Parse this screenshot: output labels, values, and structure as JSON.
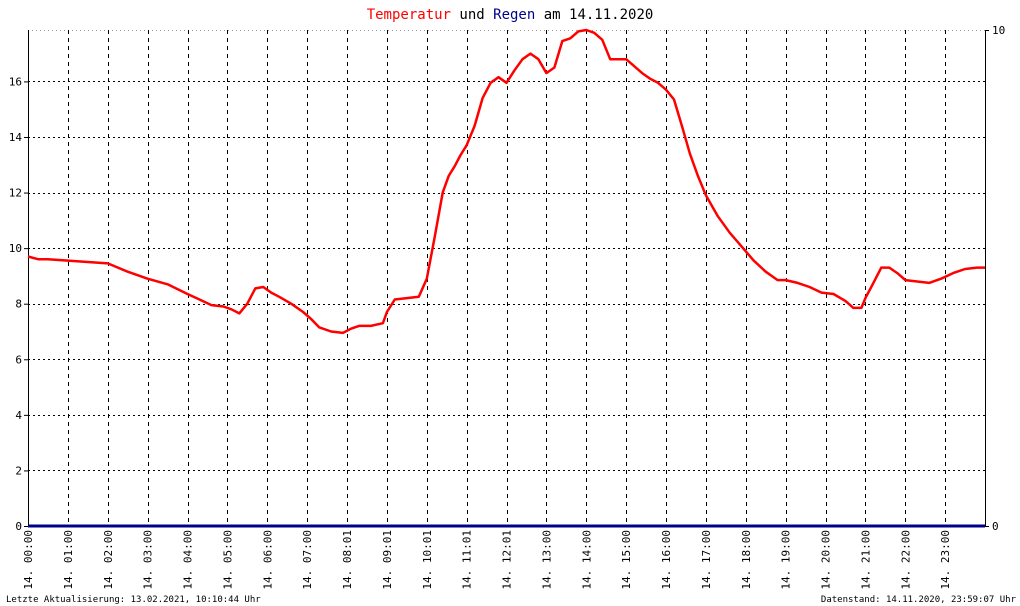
{
  "title": {
    "part1": "Temperatur",
    "part2": " und ",
    "part3": "Regen",
    "part4": " am 14.11.2020"
  },
  "colors": {
    "temperature": "#ff0000",
    "rain": "#00008b",
    "grid": "#000000",
    "background": "#ffffff"
  },
  "footer": {
    "left": "Letzte Aktualisierung: 13.02.2021, 10:10:44 Uhr",
    "right": "Datenstand: 14.11.2020, 23:59:07 Uhr"
  },
  "chart_data": {
    "type": "line",
    "title": "Temperatur und Regen am 14.11.2020",
    "grid": true,
    "x_tick_labels": [
      "14. 00:00",
      "14. 01:00",
      "14. 02:00",
      "14. 03:00",
      "14. 04:00",
      "14. 05:00",
      "14. 06:00",
      "14. 07:00",
      "14. 08:01",
      "14. 09:01",
      "14. 10:01",
      "14. 11:01",
      "14. 12:01",
      "14. 13:00",
      "14. 14:00",
      "14. 15:00",
      "14. 16:00",
      "14. 17:00",
      "14. 18:00",
      "14. 19:00",
      "14. 20:00",
      "14. 21:00",
      "14. 22:00",
      "14. 23:00"
    ],
    "y_left": {
      "ylim": [
        0,
        17.85
      ],
      "ticks": [
        0,
        2,
        4,
        6,
        8,
        10,
        12,
        14,
        16
      ]
    },
    "y_right": {
      "ylim": [
        0,
        10
      ],
      "ticks": [
        0,
        10
      ]
    },
    "series": [
      {
        "name": "Temperatur",
        "axis": "left",
        "x": [
          0,
          0.25,
          0.5,
          1,
          1.5,
          2,
          2.5,
          3,
          3.5,
          4,
          4.3,
          4.6,
          4.9,
          5.1,
          5.3,
          5.5,
          5.7,
          5.9,
          6.1,
          6.3,
          6.6,
          6.9,
          7.1,
          7.3,
          7.6,
          7.9,
          8.1,
          8.3,
          8.6,
          8.9,
          9.0,
          9.2,
          9.5,
          9.8,
          10.0,
          10.2,
          10.4,
          10.55,
          10.7,
          10.85,
          11.0,
          11.2,
          11.4,
          11.6,
          11.8,
          12.0,
          12.2,
          12.4,
          12.6,
          12.8,
          13.0,
          13.2,
          13.4,
          13.6,
          13.8,
          14.0,
          14.2,
          14.4,
          14.6,
          14.8,
          15.0,
          15.2,
          15.4,
          15.6,
          15.8,
          16.0,
          16.2,
          16.4,
          16.6,
          16.8,
          17.0,
          17.3,
          17.6,
          17.9,
          18.2,
          18.5,
          18.8,
          19.0,
          19.3,
          19.6,
          19.9,
          20.2,
          20.5,
          20.7,
          20.9,
          21.0,
          21.2,
          21.4,
          21.6,
          21.8,
          22.0,
          22.3,
          22.6,
          22.9,
          23.2,
          23.5,
          23.8,
          24.0
        ],
        "values": [
          9.7,
          9.6,
          9.6,
          9.55,
          9.5,
          9.45,
          9.15,
          8.9,
          8.7,
          8.35,
          8.15,
          7.95,
          7.9,
          7.8,
          7.65,
          8.0,
          8.55,
          8.6,
          8.4,
          8.25,
          8.0,
          7.7,
          7.45,
          7.15,
          7.0,
          6.95,
          7.1,
          7.2,
          7.2,
          7.3,
          7.7,
          8.15,
          8.2,
          8.25,
          8.9,
          10.4,
          12.0,
          12.6,
          12.95,
          13.35,
          13.7,
          14.4,
          15.4,
          15.95,
          16.15,
          15.95,
          16.4,
          16.8,
          17.0,
          16.8,
          16.3,
          16.5,
          17.45,
          17.55,
          17.8,
          17.85,
          17.75,
          17.5,
          16.8,
          16.8,
          16.8,
          16.55,
          16.3,
          16.1,
          15.95,
          15.7,
          15.35,
          14.4,
          13.4,
          12.6,
          11.9,
          11.15,
          10.55,
          10.05,
          9.55,
          9.15,
          8.85,
          8.85,
          8.75,
          8.6,
          8.4,
          8.35,
          8.1,
          7.85,
          7.85,
          8.2,
          8.75,
          9.3,
          9.3,
          9.1,
          8.85,
          8.8,
          8.75,
          8.9,
          9.1,
          9.25,
          9.3,
          9.3
        ]
      },
      {
        "name": "Regen",
        "axis": "right",
        "x": [
          0,
          24
        ],
        "values": [
          0,
          0
        ]
      }
    ]
  }
}
